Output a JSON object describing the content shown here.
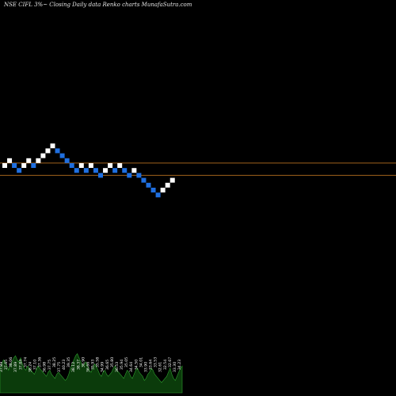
{
  "header": {
    "title": "NSE CIFL  3%~  Closing Daily data  Renko  charts MunafaSutra.com"
  },
  "colors": {
    "background": "#000000",
    "up_brick": "#ffffff",
    "down_brick": "#1f6fe0",
    "level_line": "#a0621c",
    "volume_fill": "#0b3b0b",
    "volume_edge": "#2e9e2e"
  },
  "chart_data": {
    "type": "renko",
    "title": "NSE CIFL  3%~  Closing Daily data  Renko  charts MunafaSutra.com",
    "box_size": "3%",
    "bricks": [
      {
        "level": 0,
        "dir": "up"
      },
      {
        "level": 1,
        "dir": "up"
      },
      {
        "level": 0,
        "dir": "down"
      },
      {
        "level": -1,
        "dir": "down"
      },
      {
        "level": 0,
        "dir": "up"
      },
      {
        "level": 1,
        "dir": "up"
      },
      {
        "level": 0,
        "dir": "down"
      },
      {
        "level": 1,
        "dir": "up"
      },
      {
        "level": 2,
        "dir": "up"
      },
      {
        "level": 3,
        "dir": "up"
      },
      {
        "level": 4,
        "dir": "up"
      },
      {
        "level": 3,
        "dir": "down"
      },
      {
        "level": 2,
        "dir": "down"
      },
      {
        "level": 1,
        "dir": "down"
      },
      {
        "level": 0,
        "dir": "down"
      },
      {
        "level": -1,
        "dir": "down"
      },
      {
        "level": 0,
        "dir": "up"
      },
      {
        "level": -1,
        "dir": "down"
      },
      {
        "level": 0,
        "dir": "up"
      },
      {
        "level": -1,
        "dir": "down"
      },
      {
        "level": -2,
        "dir": "down"
      },
      {
        "level": -1,
        "dir": "up"
      },
      {
        "level": 0,
        "dir": "up"
      },
      {
        "level": -1,
        "dir": "down"
      },
      {
        "level": 0,
        "dir": "up"
      },
      {
        "level": -1,
        "dir": "down"
      },
      {
        "level": -2,
        "dir": "down"
      },
      {
        "level": -1,
        "dir": "up"
      },
      {
        "level": -2,
        "dir": "down"
      },
      {
        "level": -3,
        "dir": "down"
      },
      {
        "level": -4,
        "dir": "down"
      },
      {
        "level": -5,
        "dir": "down"
      },
      {
        "level": -6,
        "dir": "down"
      },
      {
        "level": -5,
        "dir": "up"
      },
      {
        "level": -4,
        "dir": "up"
      },
      {
        "level": -3,
        "dir": "up"
      }
    ],
    "reference_levels": [
      0.5,
      -2
    ],
    "volume_values": [
      12,
      14,
      16,
      15,
      13,
      11,
      14,
      15,
      17,
      18,
      16,
      15,
      17,
      14,
      12,
      11,
      13,
      12,
      11,
      10,
      9,
      11,
      13,
      12,
      11,
      10,
      9,
      8,
      10,
      11,
      9,
      8,
      7,
      9,
      10,
      9,
      8,
      7,
      6,
      7,
      9,
      12,
      14,
      16,
      18,
      19,
      17,
      15,
      13,
      14,
      15,
      13,
      11,
      10,
      12,
      14,
      13,
      11,
      9,
      8,
      10,
      11,
      9,
      8,
      9,
      10,
      12,
      13,
      11,
      10,
      9,
      8,
      7,
      9,
      11,
      10,
      8,
      7,
      9,
      11,
      12,
      10,
      9,
      8,
      6,
      7,
      9,
      10,
      12,
      11,
      9,
      8,
      7,
      6,
      5,
      6,
      7,
      8,
      10,
      12,
      9,
      7,
      6,
      8,
      10,
      12,
      13
    ],
    "volume_labels": [
      "37.89",
      "37.65",
      "38.06",
      "37.89",
      "37.84",
      "37.74",
      "38.24",
      "37.10",
      "37.36",
      "36.98",
      "37.75",
      "38.25",
      "37.75",
      "40.23",
      "39.35",
      "38.12",
      "38.37",
      "36.90",
      "36.66",
      "35.93",
      "35.58",
      "34.99",
      "36.65",
      "35.80",
      "36.53",
      "35.94",
      "35.05",
      "34.64",
      "34.50",
      "34.01",
      "33.90",
      "33.64",
      "33.53",
      "32.61",
      "32.54",
      "32.67",
      "33.30",
      "34.23"
    ]
  }
}
